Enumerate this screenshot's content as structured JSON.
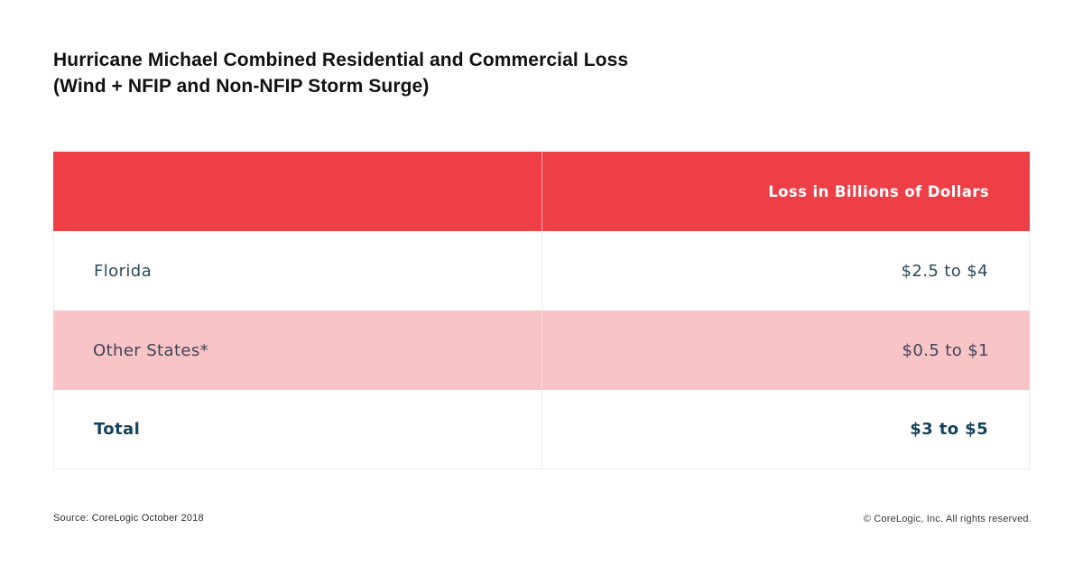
{
  "title": {
    "text": "Hurricane Michael Combined Residential and Commercial Loss\n(Wind + NFIP and Non-NFIP Storm Surge)"
  },
  "table": {
    "header": {
      "col1": "",
      "col2": "Loss in Billions of Dollars"
    },
    "rows": [
      {
        "label": "Florida",
        "value": "$2.5 to $4"
      },
      {
        "label": "Other States*",
        "value": "$0.5 to $1"
      },
      {
        "label": "Total",
        "value": "$3 to $5"
      }
    ]
  },
  "footer": {
    "source": "Source: CoreLogic October 2018",
    "copyright": "© CoreLogic, Inc. All rights reserved."
  },
  "colors": {
    "header_bg": "#EE3E46",
    "pink_row_bg": "#F9C4C6",
    "teal_text": "#2A4B5E",
    "navy_text": "#3B4559",
    "total_text": "#14435C",
    "divider": "#ECECEC"
  },
  "chart_data": {
    "type": "table",
    "title": "Hurricane Michael Combined Residential and Commercial Loss (Wind + NFIP and Non-NFIP Storm Surge)",
    "columns": [
      "",
      "Loss in Billions of Dollars"
    ],
    "rows": [
      [
        "Florida",
        "$2.5 to $4"
      ],
      [
        "Other States*",
        "$0.5 to $1"
      ],
      [
        "Total",
        "$3 to $5"
      ]
    ],
    "units": "Billions of US Dollars",
    "source": "Source: CoreLogic October 2018"
  }
}
